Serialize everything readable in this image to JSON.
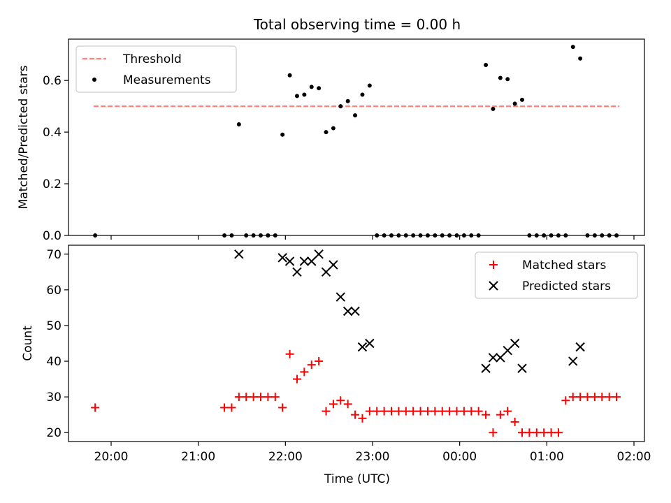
{
  "figure_title": "Total observing time = 0.00 h",
  "xlabel": "Time (UTC)",
  "x_ticks": [
    "20:00",
    "21:00",
    "22:00",
    "23:00",
    "00:00",
    "01:00",
    "02:00"
  ],
  "chart_data": [
    {
      "type": "scatter",
      "title": "",
      "ylabel": "Matched/Predicted stars",
      "ylim": [
        0,
        0.76
      ],
      "y_ticks": [
        "0.0",
        "0.2",
        "0.4",
        "0.6"
      ],
      "legend_position": "top-left",
      "threshold": {
        "name": "Threshold",
        "value": 0.5,
        "x_range": [
          "19:48",
          "01:50"
        ],
        "color": "#ff7f7f"
      },
      "series": [
        {
          "name": "Measurements",
          "color": "#000000",
          "x": [
            "19:49",
            "21:18",
            "21:23",
            "21:28",
            "21:33",
            "21:38",
            "21:43",
            "21:48",
            "21:53",
            "21:58",
            "22:03",
            "22:08",
            "22:13",
            "22:18",
            "22:23",
            "22:28",
            "22:33",
            "22:38",
            "22:43",
            "22:48",
            "22:53",
            "22:58",
            "23:03",
            "23:08",
            "23:13",
            "23:18",
            "23:23",
            "23:28",
            "23:33",
            "23:38",
            "23:43",
            "23:48",
            "23:53",
            "23:58",
            "00:03",
            "00:08",
            "00:13",
            "00:18",
            "00:23",
            "00:28",
            "00:33",
            "00:38",
            "00:43",
            "00:48",
            "00:53",
            "00:58",
            "01:03",
            "01:08",
            "01:13",
            "01:18",
            "01:23",
            "01:28",
            "01:33",
            "01:38",
            "01:43",
            "01:48"
          ],
          "y": [
            0.0,
            0.0,
            0.0,
            0.43,
            0.0,
            0.0,
            0.0,
            0.0,
            0.0,
            0.39,
            0.62,
            0.54,
            0.545,
            0.575,
            0.57,
            0.4,
            0.415,
            0.5,
            0.52,
            0.465,
            0.545,
            0.58,
            0.0,
            0.0,
            0.0,
            0.0,
            0.0,
            0.0,
            0.0,
            0.0,
            0.0,
            0.0,
            0.0,
            0.0,
            0.0,
            0.0,
            0.0,
            0.66,
            0.49,
            0.61,
            0.605,
            0.51,
            0.525,
            0.0,
            0.0,
            0.0,
            0.0,
            0.0,
            0.0,
            0.73,
            0.685,
            0.0,
            0.0,
            0.0,
            0.0,
            0.0
          ]
        }
      ]
    },
    {
      "type": "scatter",
      "title": "",
      "ylabel": "Count",
      "ylim": [
        17.5,
        72.5
      ],
      "y_ticks": [
        "20",
        "30",
        "40",
        "50",
        "60",
        "70"
      ],
      "legend_position": "top-right",
      "series": [
        {
          "name": "Matched stars",
          "marker": "plus",
          "color": "#ff0000",
          "x": [
            "19:49",
            "21:18",
            "21:23",
            "21:28",
            "21:33",
            "21:38",
            "21:43",
            "21:48",
            "21:53",
            "21:58",
            "22:03",
            "22:08",
            "22:13",
            "22:18",
            "22:23",
            "22:28",
            "22:33",
            "22:38",
            "22:43",
            "22:48",
            "22:53",
            "22:58",
            "23:03",
            "23:08",
            "23:13",
            "23:18",
            "23:23",
            "23:28",
            "23:33",
            "23:38",
            "23:43",
            "23:48",
            "23:53",
            "23:58",
            "00:03",
            "00:08",
            "00:13",
            "00:18",
            "00:23",
            "00:28",
            "00:33",
            "00:38",
            "00:43",
            "00:48",
            "00:53",
            "00:58",
            "01:03",
            "01:08",
            "01:13",
            "01:18",
            "01:23",
            "01:28",
            "01:33",
            "01:38",
            "01:43",
            "01:48"
          ],
          "y": [
            27,
            27,
            27,
            30,
            30,
            30,
            30,
            30,
            30,
            27,
            42,
            35,
            37,
            39,
            40,
            26,
            28,
            29,
            28,
            25,
            24,
            26,
            26,
            26,
            26,
            26,
            26,
            26,
            26,
            26,
            26,
            26,
            26,
            26,
            26,
            26,
            26,
            25,
            20,
            25,
            26,
            23,
            20,
            20,
            20,
            20,
            20,
            20,
            29,
            30,
            30,
            30,
            30,
            30,
            30,
            30
          ]
        },
        {
          "name": "Predicted stars",
          "marker": "x",
          "color": "#000000",
          "x": [
            "21:28",
            "21:58",
            "22:03",
            "22:08",
            "22:13",
            "22:18",
            "22:23",
            "22:28",
            "22:33",
            "22:38",
            "22:43",
            "22:48",
            "22:53",
            "22:58",
            "00:18",
            "00:23",
            "00:28",
            "00:33",
            "00:38",
            "00:43",
            "01:18",
            "01:23"
          ],
          "y": [
            70,
            69,
            68,
            65,
            68,
            68,
            70,
            65,
            67,
            58,
            54,
            54,
            44,
            45,
            38,
            41,
            41,
            43,
            45,
            38,
            40,
            44
          ]
        }
      ]
    }
  ]
}
